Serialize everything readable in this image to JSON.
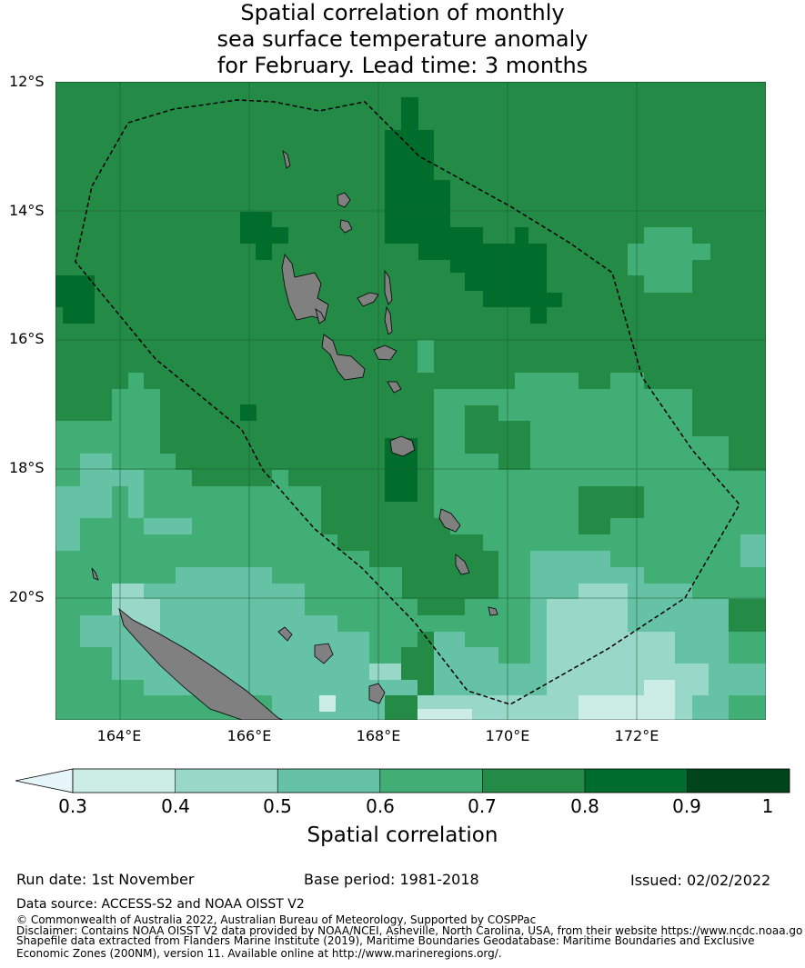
{
  "title": {
    "line1": "Spatial correlation of monthly",
    "line2": "sea surface temperature anomaly",
    "line3": "for February. Lead time: 3 months"
  },
  "axes": {
    "lat_labels": [
      "12°S",
      "14°S",
      "16°S",
      "18°S",
      "20°S"
    ],
    "lon_labels": [
      "164°E",
      "166°E",
      "168°E",
      "170°E",
      "172°E"
    ],
    "lat_range": [
      -21.9,
      -12.0
    ],
    "lon_range": [
      163.0,
      174.0
    ]
  },
  "colorbar": {
    "ticks": [
      "0.3",
      "0.4",
      "0.5",
      "0.6",
      "0.7",
      "0.8",
      "0.9",
      "1"
    ],
    "label": "Spatial correlation",
    "colors": [
      "#e5f5f9",
      "#ccece6",
      "#99d8c9",
      "#66c2a4",
      "#41ae76",
      "#238b45",
      "#006d2c",
      "#00441b"
    ]
  },
  "footer": {
    "run_date": "Run date: 1st November",
    "base_period": "Base period: 1981-2018",
    "issued": "Issued: 02/02/2022",
    "data_source": "Data source: ACCESS-S2 and NOAA OISST V2",
    "copyright": "© Commonwealth of Australia 2022, Australian Bureau of Meteorology, Supported by COSPPac",
    "disclaimer_1": "Disclaimer: Contains NOAA OISST V2 data provided by NOAA/NCEI, Asheville, North Carolina, USA, from their website https://www.ncdc.noaa.go",
    "disclaimer_2": "Shapefile data extracted from Flanders Marine Institute (2019), Maritime Boundaries Geodatabase: Maritime Boundaries and Exclusive",
    "disclaimer_3": "Economic Zones (200NM), version 11. Available online at http://www.marineregions.org/."
  },
  "map_colors": {
    "land": "#808080",
    "grid": "#1e5a30",
    "eez_line": "#000000"
  }
}
